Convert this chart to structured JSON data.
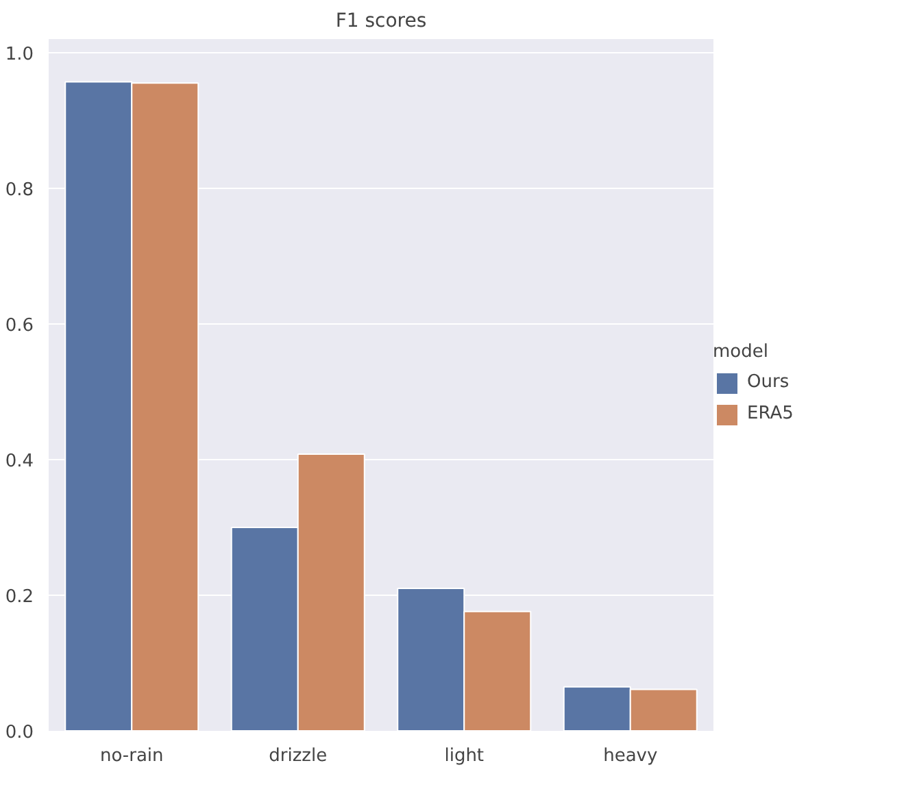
{
  "chart_data": {
    "type": "bar",
    "title": "F1 scores",
    "categories": [
      "no-rain",
      "drizzle",
      "light",
      "heavy"
    ],
    "series": [
      {
        "name": "Ours",
        "color": "#5975a4",
        "values": [
          0.957,
          0.3,
          0.21,
          0.065
        ]
      },
      {
        "name": "ERA5",
        "color": "#cc8963",
        "values": [
          0.955,
          0.408,
          0.176,
          0.061
        ]
      }
    ],
    "legend_title": "model",
    "legend": "right",
    "grid": "y",
    "ylim": [
      0,
      1.02
    ],
    "yticks": [
      {
        "value": 0,
        "label": "0.0"
      },
      {
        "value": 0.2,
        "label": "0.2"
      },
      {
        "value": 0.4,
        "label": "0.4"
      },
      {
        "value": 0.6,
        "label": "0.6"
      },
      {
        "value": 0.8,
        "label": "0.8"
      },
      {
        "value": 1,
        "label": "1.0"
      }
    ]
  }
}
